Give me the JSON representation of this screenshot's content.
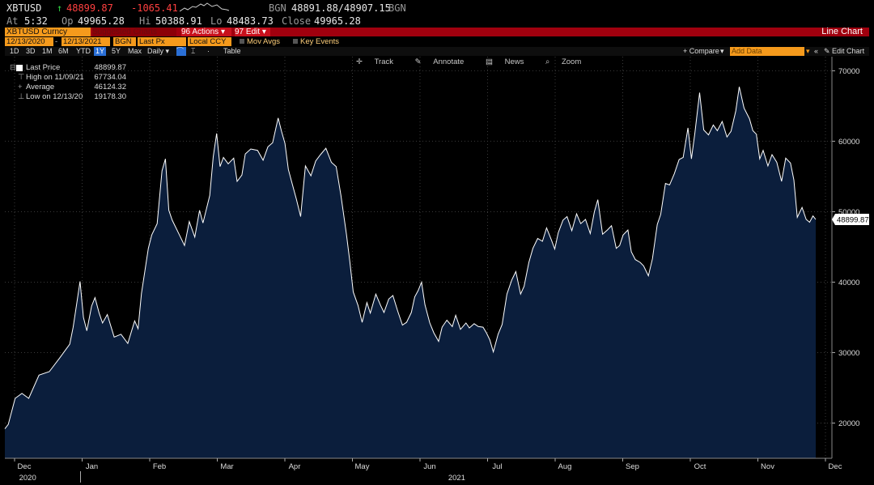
{
  "quote": {
    "ticker": "XBTUSD",
    "arrow": "↑",
    "last": "48899.87",
    "change": "-1065.41",
    "source": "BGN",
    "bid_ask": "48891.88/48907.15",
    "source2": "BGN",
    "at_label": "At",
    "time": "5:32",
    "open_label": "Op",
    "open": "49965.28",
    "high_label": "Hi",
    "high": "50388.91",
    "low_label": "Lo",
    "low": "48483.73",
    "close_label": "Close",
    "close": "49965.28"
  },
  "cmdbar": {
    "security": "XBTUSD Curncy",
    "suggested": "Suggested Charts",
    "actions_num": "96",
    "actions": "Actions",
    "edit_num": "97",
    "edit": "Edit",
    "chart_type": "Line Chart"
  },
  "rangebar": {
    "start": "12/13/2020",
    "end": "12/13/2021",
    "source": "BGN",
    "field": "Last Px",
    "currency": "Local CCY",
    "mov_avgs": "Mov Avgs",
    "key_events": "Key Events"
  },
  "periodbar": {
    "periods": [
      "1D",
      "3D",
      "1M",
      "6M",
      "YTD",
      "1Y",
      "5Y",
      "Max"
    ],
    "active": "1Y",
    "frequency": "Daily",
    "table": "Table",
    "compare": "+ Compare",
    "add_data": "Add Data",
    "edit_chart": "Edit Chart"
  },
  "tools": {
    "track": "Track",
    "annotate": "Annotate",
    "news": "News",
    "zoom": "Zoom"
  },
  "legend": {
    "last_price_label": "Last Price",
    "last_price": "48899.87",
    "high_label": "High on 11/09/21",
    "high": "67734.04",
    "average_label": "Average",
    "average": "46124.32",
    "low_label": "Low on 12/13/20",
    "low": "19178.30"
  },
  "colors": {
    "fill": "#0b1e3c",
    "line": "#ffffff",
    "grid": "#3a3a3a",
    "accent": "#f59a1c",
    "bar": "#a0000e"
  },
  "chart_data": {
    "type": "area",
    "title": "",
    "xlabel": "",
    "ylabel": "",
    "series": [
      {
        "values": [
          [
            0,
            19178
          ],
          [
            0.05,
            19800
          ],
          [
            0.15,
            23500
          ],
          [
            0.25,
            24200
          ],
          [
            0.35,
            23500
          ],
          [
            0.5,
            26800
          ],
          [
            0.65,
            27300
          ],
          [
            0.8,
            29200
          ],
          [
            0.95,
            31200
          ],
          [
            1.0,
            33600
          ],
          [
            1.05,
            36800
          ],
          [
            1.1,
            40100
          ],
          [
            1.15,
            35000
          ],
          [
            1.2,
            33100
          ],
          [
            1.27,
            36600
          ],
          [
            1.32,
            37800
          ],
          [
            1.38,
            35600
          ],
          [
            1.43,
            34200
          ],
          [
            1.5,
            35400
          ],
          [
            1.6,
            32200
          ],
          [
            1.7,
            32600
          ],
          [
            1.8,
            31300
          ],
          [
            1.9,
            34500
          ],
          [
            1.95,
            33400
          ],
          [
            2.0,
            38400
          ],
          [
            2.1,
            44800
          ],
          [
            2.15,
            46700
          ],
          [
            2.23,
            48300
          ],
          [
            2.3,
            55800
          ],
          [
            2.35,
            57500
          ],
          [
            2.4,
            50200
          ],
          [
            2.45,
            48800
          ],
          [
            2.55,
            46800
          ],
          [
            2.63,
            45200
          ],
          [
            2.7,
            48600
          ],
          [
            2.78,
            46400
          ],
          [
            2.85,
            50200
          ],
          [
            2.9,
            48400
          ],
          [
            3.0,
            52300
          ],
          [
            3.05,
            57800
          ],
          [
            3.1,
            61100
          ],
          [
            3.15,
            56400
          ],
          [
            3.2,
            57700
          ],
          [
            3.27,
            56800
          ],
          [
            3.35,
            57600
          ],
          [
            3.4,
            54300
          ],
          [
            3.47,
            55200
          ],
          [
            3.52,
            58200
          ],
          [
            3.6,
            58900
          ],
          [
            3.7,
            58700
          ],
          [
            3.78,
            57300
          ],
          [
            3.85,
            59200
          ],
          [
            3.92,
            59800
          ],
          [
            4.0,
            63300
          ],
          [
            4.05,
            61400
          ],
          [
            4.1,
            59700
          ],
          [
            4.15,
            56000
          ],
          [
            4.2,
            54200
          ],
          [
            4.27,
            51700
          ],
          [
            4.33,
            49300
          ],
          [
            4.4,
            56500
          ],
          [
            4.48,
            55100
          ],
          [
            4.55,
            57200
          ],
          [
            4.62,
            58100
          ],
          [
            4.7,
            59000
          ],
          [
            4.78,
            57000
          ],
          [
            4.85,
            56400
          ],
          [
            4.92,
            52300
          ],
          [
            5.0,
            46800
          ],
          [
            5.05,
            42900
          ],
          [
            5.1,
            38600
          ],
          [
            5.17,
            36700
          ],
          [
            5.23,
            34300
          ],
          [
            5.3,
            37100
          ],
          [
            5.35,
            35600
          ],
          [
            5.43,
            38300
          ],
          [
            5.5,
            36700
          ],
          [
            5.55,
            35700
          ],
          [
            5.62,
            37600
          ],
          [
            5.68,
            38100
          ],
          [
            5.75,
            35900
          ],
          [
            5.82,
            33900
          ],
          [
            5.88,
            34300
          ],
          [
            5.95,
            35700
          ],
          [
            6.0,
            37900
          ],
          [
            6.05,
            38800
          ],
          [
            6.1,
            40000
          ],
          [
            6.15,
            36800
          ],
          [
            6.22,
            34200
          ],
          [
            6.28,
            32800
          ],
          [
            6.35,
            31600
          ],
          [
            6.4,
            33600
          ],
          [
            6.47,
            34600
          ],
          [
            6.55,
            33700
          ],
          [
            6.6,
            35300
          ],
          [
            6.67,
            33300
          ],
          [
            6.75,
            34200
          ],
          [
            6.8,
            33500
          ],
          [
            6.87,
            34100
          ],
          [
            6.93,
            33700
          ],
          [
            7.0,
            33600
          ],
          [
            7.05,
            32800
          ],
          [
            7.1,
            31800
          ],
          [
            7.15,
            30100
          ],
          [
            7.22,
            32600
          ],
          [
            7.28,
            34000
          ],
          [
            7.35,
            38300
          ],
          [
            7.42,
            40300
          ],
          [
            7.48,
            41500
          ],
          [
            7.55,
            38300
          ],
          [
            7.6,
            39400
          ],
          [
            7.67,
            42800
          ],
          [
            7.73,
            44800
          ],
          [
            7.8,
            46200
          ],
          [
            7.87,
            45800
          ],
          [
            7.93,
            47700
          ],
          [
            8.0,
            46000
          ],
          [
            8.05,
            44700
          ],
          [
            8.1,
            47000
          ],
          [
            8.17,
            48800
          ],
          [
            8.23,
            49300
          ],
          [
            8.3,
            47300
          ],
          [
            8.37,
            49700
          ],
          [
            8.43,
            48300
          ],
          [
            8.5,
            48900
          ],
          [
            8.57,
            46900
          ],
          [
            8.63,
            50000
          ],
          [
            8.68,
            51700
          ],
          [
            8.75,
            46800
          ],
          [
            8.82,
            47400
          ],
          [
            8.88,
            48000
          ],
          [
            8.95,
            44800
          ],
          [
            9.0,
            45200
          ],
          [
            9.05,
            46700
          ],
          [
            9.12,
            47400
          ],
          [
            9.17,
            44300
          ],
          [
            9.23,
            43200
          ],
          [
            9.3,
            42800
          ],
          [
            9.35,
            42300
          ],
          [
            9.42,
            40900
          ],
          [
            9.48,
            43300
          ],
          [
            9.55,
            48200
          ],
          [
            9.6,
            49600
          ],
          [
            9.67,
            54000
          ],
          [
            9.73,
            53800
          ],
          [
            9.8,
            55400
          ],
          [
            9.87,
            57400
          ],
          [
            9.93,
            57700
          ],
          [
            10.0,
            61900
          ],
          [
            10.05,
            57500
          ],
          [
            10.1,
            61100
          ],
          [
            10.17,
            66900
          ],
          [
            10.23,
            61600
          ],
          [
            10.3,
            60900
          ],
          [
            10.37,
            62300
          ],
          [
            10.43,
            61500
          ],
          [
            10.5,
            62800
          ],
          [
            10.57,
            60600
          ],
          [
            10.63,
            61400
          ],
          [
            10.7,
            64300
          ],
          [
            10.75,
            67730
          ],
          [
            10.82,
            64700
          ],
          [
            10.9,
            63200
          ],
          [
            10.95,
            61500
          ],
          [
            11.0,
            61000
          ],
          [
            11.05,
            57500
          ],
          [
            11.1,
            58700
          ],
          [
            11.17,
            56500
          ],
          [
            11.23,
            58100
          ],
          [
            11.3,
            57000
          ],
          [
            11.37,
            54300
          ],
          [
            11.43,
            57600
          ],
          [
            11.5,
            56900
          ],
          [
            11.55,
            54500
          ],
          [
            11.6,
            49200
          ],
          [
            11.67,
            50600
          ],
          [
            11.73,
            48900
          ],
          [
            11.78,
            48500
          ],
          [
            11.83,
            49400
          ],
          [
            11.87,
            48899.87
          ]
        ]
      }
    ],
    "x_tick_labels": [
      "Dec",
      "Jan",
      "Feb",
      "Mar",
      "Apr",
      "May",
      "Jun",
      "Jul",
      "Aug",
      "Sep",
      "Oct",
      "Nov",
      "Dec"
    ],
    "year_labels": [
      "2020",
      "2021"
    ],
    "y_ticks": [
      20000,
      30000,
      40000,
      50000,
      60000,
      70000
    ],
    "ylim": [
      15000,
      72000
    ],
    "last_value_label": "48899.87",
    "grid": true,
    "legend_position": "top-left"
  }
}
